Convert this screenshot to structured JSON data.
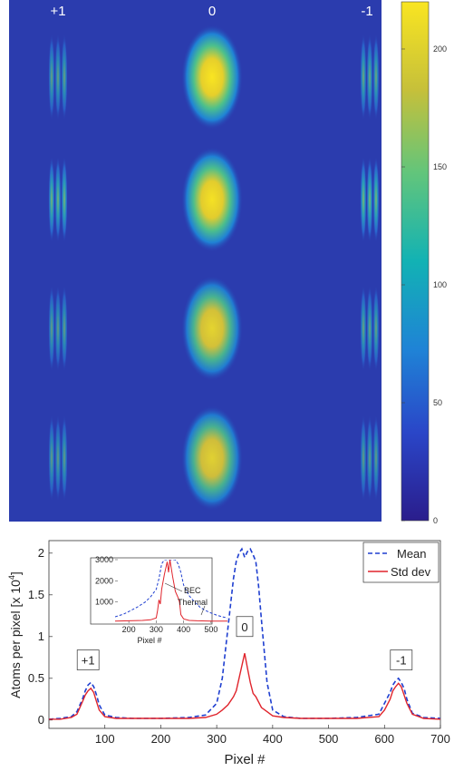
{
  "chart_data": [
    {
      "type": "heatmap",
      "order_labels": [
        "+1",
        "0",
        "-1"
      ],
      "colorbar": {
        "ticks": [
          0,
          50,
          100,
          150,
          200
        ],
        "range": [
          0,
          220
        ],
        "colors": [
          "#2a1d8c",
          "#2a46c8",
          "#1f83d6",
          "#12b2b4",
          "#62c57b",
          "#c6c03a",
          "#f9e521"
        ]
      },
      "rows": [
        {
          "clouds": [
            {
              "order": "+1",
              "peak": 90
            },
            {
              "order": "0",
              "peak": 220
            },
            {
              "order": "-1",
              "peak": 110
            }
          ]
        },
        {
          "clouds": [
            {
              "order": "+1",
              "peak": 150
            },
            {
              "order": "0",
              "peak": 210
            },
            {
              "order": "-1",
              "peak": 160
            }
          ]
        },
        {
          "clouds": [
            {
              "order": "+1",
              "peak": 85
            },
            {
              "order": "0",
              "peak": 170
            },
            {
              "order": "-1",
              "peak": 100
            }
          ]
        },
        {
          "clouds": [
            {
              "order": "+1",
              "peak": 80
            },
            {
              "order": "0",
              "peak": 160
            },
            {
              "order": "-1",
              "peak": 80
            }
          ]
        }
      ]
    },
    {
      "type": "line",
      "xlabel": "Pixel #",
      "ylabel": "Atoms per pixel [x 10",
      "ylabel_exp": "4",
      "ylabel_close": "]",
      "xlim": [
        0,
        700
      ],
      "ylim": [
        -0.1,
        2.15
      ],
      "xticks": [
        100,
        200,
        300,
        400,
        500,
        600,
        700
      ],
      "yticks": [
        0,
        0.5,
        1,
        1.5,
        2
      ],
      "ytick_labels": [
        "0",
        "0.5",
        "1",
        "1.5",
        "2"
      ],
      "annotations": [
        {
          "text": "+1",
          "x": 70,
          "y": 0.72
        },
        {
          "text": "0",
          "x": 350,
          "y": 1.12
        },
        {
          "text": "-1",
          "x": 630,
          "y": 0.72
        }
      ],
      "series": [
        {
          "name": "Mean",
          "color": "#1f3fd0",
          "style": "dashed",
          "x": [
            0,
            20,
            40,
            50,
            60,
            65,
            70,
            75,
            80,
            85,
            90,
            100,
            120,
            150,
            200,
            250,
            280,
            300,
            310,
            320,
            330,
            335,
            340,
            345,
            350,
            355,
            360,
            365,
            370,
            375,
            380,
            390,
            400,
            420,
            450,
            500,
            550,
            590,
            600,
            610,
            615,
            620,
            625,
            630,
            635,
            640,
            650,
            670,
            700
          ],
          "y": [
            0.01,
            0.02,
            0.04,
            0.1,
            0.25,
            0.35,
            0.42,
            0.45,
            0.4,
            0.3,
            0.18,
            0.06,
            0.03,
            0.02,
            0.02,
            0.03,
            0.06,
            0.2,
            0.5,
            1.1,
            1.7,
            1.9,
            2.0,
            2.05,
            1.95,
            2.02,
            2.05,
            1.98,
            1.9,
            1.6,
            1.2,
            0.45,
            0.12,
            0.04,
            0.02,
            0.02,
            0.03,
            0.07,
            0.2,
            0.33,
            0.42,
            0.47,
            0.5,
            0.45,
            0.38,
            0.25,
            0.08,
            0.03,
            0.02
          ]
        },
        {
          "name": "Std dev",
          "color": "#e0242c",
          "style": "solid",
          "x": [
            0,
            20,
            40,
            50,
            60,
            65,
            70,
            75,
            80,
            85,
            90,
            100,
            120,
            150,
            200,
            250,
            280,
            300,
            310,
            320,
            330,
            335,
            340,
            345,
            350,
            355,
            360,
            365,
            370,
            380,
            390,
            400,
            420,
            450,
            500,
            550,
            590,
            600,
            610,
            615,
            620,
            625,
            630,
            635,
            640,
            650,
            670,
            700
          ],
          "y": [
            0.01,
            0.01,
            0.03,
            0.07,
            0.22,
            0.3,
            0.35,
            0.38,
            0.33,
            0.22,
            0.12,
            0.04,
            0.02,
            0.02,
            0.02,
            0.02,
            0.03,
            0.07,
            0.12,
            0.18,
            0.28,
            0.35,
            0.5,
            0.65,
            0.8,
            0.62,
            0.45,
            0.32,
            0.28,
            0.15,
            0.1,
            0.05,
            0.03,
            0.02,
            0.02,
            0.02,
            0.04,
            0.12,
            0.25,
            0.35,
            0.4,
            0.44,
            0.4,
            0.3,
            0.2,
            0.07,
            0.02,
            0.01
          ]
        }
      ],
      "legend": {
        "position": "top-right",
        "entries": [
          "Mean",
          "Std dev"
        ]
      },
      "inset": {
        "type": "line",
        "xlabel": "Pixel #",
        "xlim": [
          150,
          560
        ],
        "ylim": [
          0,
          3000
        ],
        "xticks": [
          200,
          300,
          400,
          500
        ],
        "yticks": [
          1000,
          2000,
          3000
        ],
        "annotations": [
          "BEC",
          "Thermal"
        ],
        "series": [
          {
            "name": "Mean",
            "color": "#1f3fd0",
            "style": "dashed",
            "x": [
              150,
              180,
              200,
              230,
              260,
              280,
              300,
              310,
              320,
              330,
              340,
              350,
              360,
              370,
              380,
              390,
              400,
              420,
              440,
              460,
              480,
              500,
              520,
              540,
              560
            ],
            "y": [
              300,
              420,
              550,
              750,
              1000,
              1250,
              1600,
              2100,
              2800,
              3000,
              3000,
              3000,
              3000,
              3000,
              2800,
              2400,
              1800,
              1300,
              1000,
              750,
              600,
              480,
              380,
              300,
              250
            ]
          },
          {
            "name": "Std dev",
            "color": "#e0242c",
            "style": "solid",
            "x": [
              150,
              200,
              250,
              280,
              300,
              305,
              310,
              315,
              320,
              330,
              340,
              345,
              350,
              355,
              360,
              370,
              380,
              385,
              390,
              400,
              420,
              450,
              500,
              560
            ],
            "y": [
              100,
              110,
              130,
              160,
              250,
              600,
              1100,
              900,
              1600,
              2300,
              2900,
              2400,
              3000,
              2600,
              2200,
              1500,
              1200,
              1000,
              400,
              200,
              130,
              110,
              100,
              100
            ]
          }
        ]
      }
    }
  ]
}
